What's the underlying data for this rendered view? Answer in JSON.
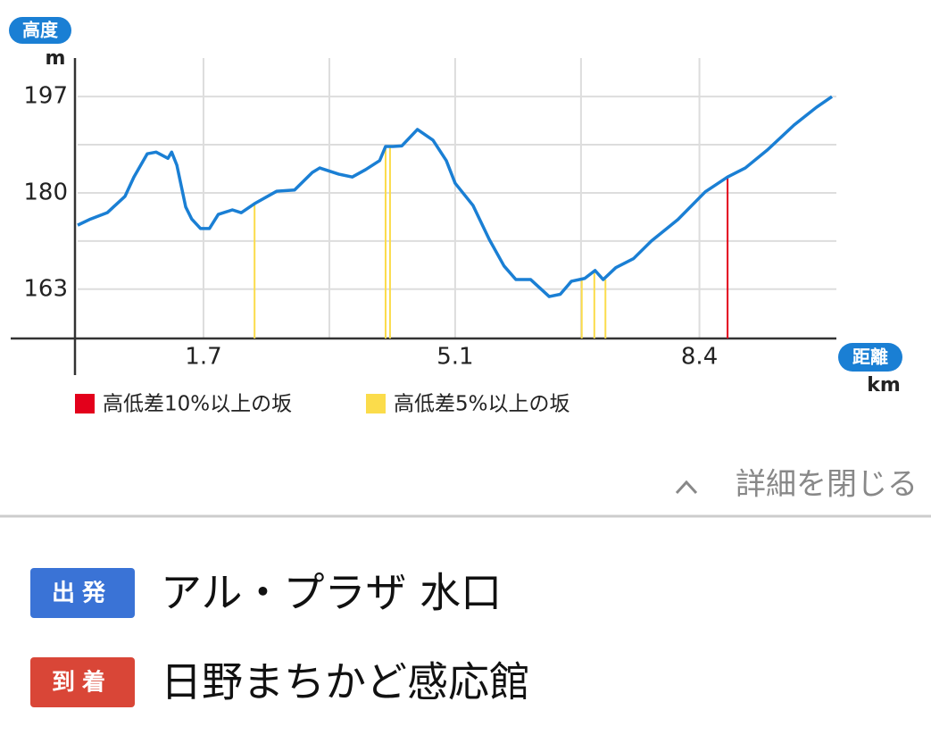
{
  "chart_data": {
    "type": "line",
    "y_badge": "高度",
    "y_unit": "m",
    "x_badge": "距離",
    "x_unit": "km",
    "color": "#1a7fd4",
    "x": [
      0,
      0.16,
      0.4,
      0.64,
      0.76,
      0.94,
      1.06,
      1.22,
      1.27,
      1.34,
      1.46,
      1.54,
      1.66,
      1.78,
      1.9,
      2.09,
      2.21,
      2.39,
      2.69,
      2.93,
      3.17,
      3.27,
      3.53,
      3.71,
      3.89,
      4.08,
      4.16,
      4.26,
      4.38,
      4.59,
      4.8,
      4.98,
      5.1,
      5.34,
      5.56,
      5.76,
      5.92,
      6.12,
      6.37,
      6.52,
      6.67,
      6.85,
      6.99,
      7.1,
      7.27,
      7.51,
      7.75,
      8.11,
      8.48,
      8.78,
      9.02,
      9.32,
      9.68,
      9.98,
      10.19
    ],
    "values": [
      174.3,
      175.3,
      176.5,
      179.4,
      182.8,
      186.9,
      187.2,
      186.1,
      187.2,
      184.9,
      177.5,
      175.4,
      173.7,
      173.7,
      176.2,
      177.0,
      176.5,
      178.1,
      180.3,
      180.5,
      183.6,
      184.4,
      183.3,
      182.8,
      184.1,
      185.7,
      188.2,
      188.2,
      188.3,
      191.2,
      189.3,
      185.7,
      181.7,
      177.8,
      171.8,
      167.1,
      164.7,
      164.7,
      161.7,
      162.1,
      164.4,
      164.9,
      166.3,
      164.7,
      166.8,
      168.4,
      171.5,
      175.3,
      180.2,
      182.8,
      184.4,
      187.6,
      192.0,
      195.1,
      197
    ],
    "series": [
      {
        "name": "高低差10%以上の坂",
        "color": "#e3001b",
        "x": [
          8.78
        ],
        "values": [
          182.8
        ]
      },
      {
        "name": "高低差5%以上の坂",
        "color": "#fbdc4b",
        "x": [
          2.39,
          4.16,
          4.22,
          6.81,
          6.98,
          7.13
        ],
        "values": [
          178.1,
          188.2,
          188.2,
          164.9,
          166.3,
          164.7
        ]
      }
    ],
    "xlim": [
      0,
      10.25
    ],
    "ylim": [
      154.3,
      203.8
    ],
    "xticks": [
      1.7,
      5.1,
      8.4
    ],
    "yticks": [
      163,
      180,
      197
    ],
    "x_minor_grid": [
      3.4,
      6.8
    ],
    "y_minor_grid": [
      171.5,
      188.5
    ],
    "grid": true
  },
  "toggle": "詳細を閉じる",
  "route": {
    "departure": {
      "badge": "出発",
      "name": "アル・プラザ 水口"
    },
    "arrival": {
      "badge": "到着",
      "name": "日野まちかど感応館"
    }
  }
}
